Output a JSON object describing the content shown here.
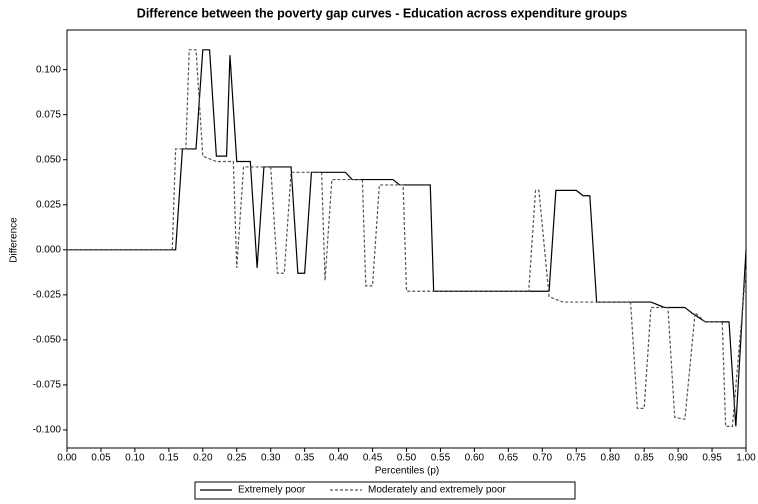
{
  "chart_data": {
    "type": "line",
    "title": "Difference between the poverty gap curves - Education across expenditure groups",
    "x_label": "Percentiles (p)",
    "y_label": "Difference",
    "xlim": [
      0,
      1
    ],
    "ylim": [
      -0.11,
      0.122
    ],
    "xticks": [
      {
        "value": 0,
        "label": "0.00"
      },
      0.05,
      {
        "value": 0.1,
        "label": "0.10"
      },
      0.15,
      {
        "value": 0.2,
        "label": "0.20"
      },
      0.25,
      {
        "value": 0.3,
        "label": "0.30"
      },
      0.35,
      {
        "value": 0.4,
        "label": "0.40"
      },
      0.45,
      {
        "value": 0.5,
        "label": "0.50"
      },
      0.55,
      {
        "value": 0.6,
        "label": "0.60"
      },
      0.65,
      {
        "value": 0.7,
        "label": "0.70"
      },
      0.75,
      {
        "value": 0.8,
        "label": "0.80"
      },
      0.85,
      {
        "value": 0.9,
        "label": "0.90"
      },
      0.95,
      {
        "value": 1,
        "label": "1.00"
      }
    ],
    "yticks": [
      {
        "value": 0.1,
        "label": "0.100"
      },
      0.075,
      {
        "value": 0.05,
        "label": "0.050"
      },
      0.025,
      {
        "value": 0,
        "label": "0.000"
      },
      -0.025,
      {
        "value": -0.05,
        "label": "-0.050"
      },
      -0.075,
      {
        "value": -0.1,
        "label": "-0.100"
      }
    ],
    "series": [
      {
        "name": "Extremely poor",
        "color": "#000000",
        "dash": "solid",
        "x": [
          0,
          0.16,
          0.17,
          0.19,
          0.2,
          0.21,
          0.22,
          0.235,
          0.24,
          0.25,
          0.27,
          0.28,
          0.29,
          0.33,
          0.34,
          0.35,
          0.36,
          0.41,
          0.42,
          0.48,
          0.49,
          0.535,
          0.54,
          0.71,
          0.72,
          0.75,
          0.76,
          0.77,
          0.78,
          0.86,
          0.88,
          0.91,
          0.92,
          0.94,
          0.975,
          0.985,
          1
        ],
        "values": [
          0,
          0,
          0.056,
          0.056,
          0.111,
          0.111,
          0.052,
          0.052,
          0.108,
          0.049,
          0.049,
          -0.01,
          0.046,
          0.046,
          -0.013,
          -0.013,
          0.043,
          0.043,
          0.039,
          0.039,
          0.036,
          0.036,
          -0.023,
          -0.023,
          0.033,
          0.033,
          0.03,
          0.03,
          -0.029,
          -0.029,
          -0.032,
          -0.032,
          -0.035,
          -0.04,
          -0.04,
          -0.098,
          0
        ]
      },
      {
        "name": "Moderately and extremely poor",
        "color": "#555555",
        "dash": "dashed",
        "x": [
          0,
          0.155,
          0.16,
          0.175,
          0.18,
          0.19,
          0.2,
          0.22,
          0.245,
          0.25,
          0.26,
          0.3,
          0.31,
          0.32,
          0.33,
          0.375,
          0.38,
          0.39,
          0.435,
          0.44,
          0.45,
          0.46,
          0.495,
          0.5,
          0.68,
          0.69,
          0.695,
          0.71,
          0.73,
          0.83,
          0.84,
          0.85,
          0.86,
          0.885,
          0.895,
          0.91,
          0.925,
          0.94,
          0.965,
          0.97,
          0.98,
          1
        ],
        "values": [
          0,
          0,
          0.056,
          0.056,
          0.111,
          0.111,
          0.052,
          0.049,
          0.049,
          -0.01,
          0.046,
          0.046,
          -0.013,
          -0.013,
          0.043,
          0.043,
          -0.017,
          0.039,
          0.039,
          -0.02,
          -0.02,
          0.036,
          0.036,
          -0.023,
          -0.023,
          0.033,
          0.033,
          -0.026,
          -0.029,
          -0.029,
          -0.088,
          -0.088,
          -0.032,
          -0.032,
          -0.093,
          -0.094,
          -0.035,
          -0.04,
          -0.04,
          -0.098,
          -0.098,
          -0.01
        ]
      }
    ]
  }
}
